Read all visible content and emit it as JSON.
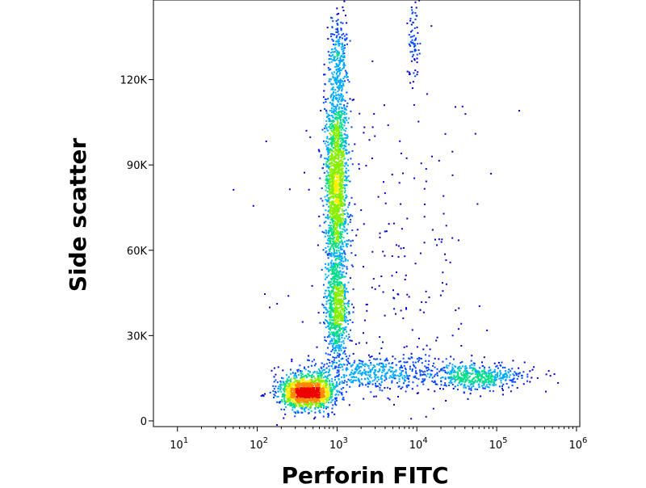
{
  "chart_data": {
    "type": "scatter",
    "subtype": "flow-cytometry density dot plot",
    "title": "",
    "xlabel": "Perforin FITC",
    "ylabel": "Side scatter",
    "x_scale": "log",
    "xlim": [
      5,
      1100000
    ],
    "ylim": [
      -2000,
      148000
    ],
    "x_ticks": [
      {
        "base": "10",
        "exp": "1",
        "value": 10
      },
      {
        "base": "10",
        "exp": "2",
        "value": 100
      },
      {
        "base": "10",
        "exp": "3",
        "value": 1000
      },
      {
        "base": "10",
        "exp": "4",
        "value": 10000
      },
      {
        "base": "10",
        "exp": "5",
        "value": 100000
      },
      {
        "base": "10",
        "exp": "6",
        "value": 1000000
      }
    ],
    "y_ticks": [
      {
        "label": "0",
        "value": 0
      },
      {
        "label": "30K",
        "value": 30000
      },
      {
        "label": "60K",
        "value": 60000
      },
      {
        "label": "90K",
        "value": 90000
      },
      {
        "label": "120K",
        "value": 120000
      }
    ],
    "density_colors": [
      "#0000cc",
      "#0044ff",
      "#00aaff",
      "#00dd88",
      "#88ee00",
      "#ffee00",
      "#ff8800",
      "#ee0000"
    ],
    "grid": false,
    "legend": "none",
    "populations": [
      {
        "x_center": 420,
        "x_spread_log10": 0.17,
        "y_center": 10000,
        "y_spread": 3000,
        "count": 1400
      },
      {
        "x_center": 1000,
        "x_spread_log10": 0.07,
        "y_center": 38000,
        "y_spread": 9000,
        "count": 700
      },
      {
        "x_center": 980,
        "x_spread_log10": 0.07,
        "y_center": 85000,
        "y_spread": 19000,
        "count": 1800
      },
      {
        "x_center": 1050,
        "x_spread_log10": 0.06,
        "y_center": 128000,
        "y_spread": 9000,
        "count": 200
      },
      {
        "x_center": 3000,
        "x_spread_log10": 0.45,
        "y_center": 17000,
        "y_spread": 3000,
        "count": 500
      },
      {
        "x_center": 60000,
        "x_spread_log10": 0.3,
        "y_center": 15500,
        "y_spread": 2500,
        "count": 500
      },
      {
        "x_center": 9000,
        "x_spread_log10": 0.04,
        "y_center": 133000,
        "y_spread": 10000,
        "count": 80
      },
      {
        "x_center": 5000,
        "x_spread_log10": 0.6,
        "y_center": 55000,
        "y_spread": 35000,
        "count": 250
      }
    ]
  }
}
